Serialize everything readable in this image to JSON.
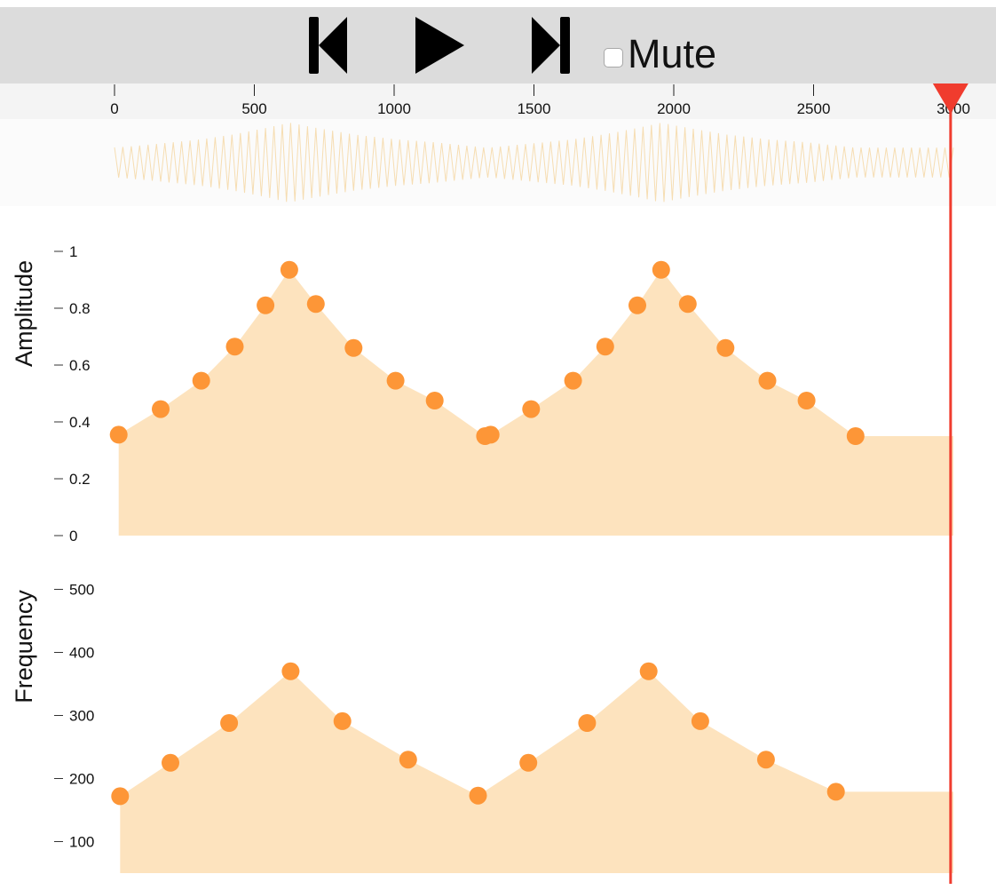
{
  "toolbar": {
    "prev_icon": "skip-back-icon",
    "play_icon": "play-icon",
    "next_icon": "skip-forward-icon",
    "mute_label": "Mute",
    "mute_checked": false
  },
  "timeline": {
    "ticks": [
      "0",
      "500",
      "1000",
      "1500",
      "2000",
      "2500",
      "3000"
    ],
    "tick_values": [
      0,
      500,
      1000,
      1500,
      2000,
      2500,
      3000
    ],
    "range": [
      0,
      3000
    ],
    "playhead": 2990,
    "playhead_color": "#f03c2e"
  },
  "colors": {
    "fill": "#fde3be",
    "point": "#fd9637",
    "waveform": "#f6ddb2",
    "axis_text": "#111111"
  },
  "chart_data": [
    {
      "type": "area",
      "ylabel": "Amplitude",
      "ylim": [
        0,
        1
      ],
      "yticks": [
        "0",
        "0.2",
        "0.4",
        "0.6",
        "0.8",
        "1"
      ],
      "ytick_values": [
        0,
        0.2,
        0.4,
        0.6,
        0.8,
        1
      ],
      "end_x": 3000,
      "points": [
        {
          "x": 15,
          "y": 0.355
        },
        {
          "x": 165,
          "y": 0.445
        },
        {
          "x": 310,
          "y": 0.545
        },
        {
          "x": 430,
          "y": 0.665
        },
        {
          "x": 540,
          "y": 0.81
        },
        {
          "x": 625,
          "y": 0.935
        },
        {
          "x": 720,
          "y": 0.815
        },
        {
          "x": 855,
          "y": 0.66
        },
        {
          "x": 1005,
          "y": 0.545
        },
        {
          "x": 1145,
          "y": 0.475
        },
        {
          "x": 1325,
          "y": 0.35
        },
        {
          "x": 1345,
          "y": 0.355
        },
        {
          "x": 1490,
          "y": 0.445
        },
        {
          "x": 1640,
          "y": 0.545
        },
        {
          "x": 1755,
          "y": 0.665
        },
        {
          "x": 1870,
          "y": 0.81
        },
        {
          "x": 1955,
          "y": 0.935
        },
        {
          "x": 2050,
          "y": 0.815
        },
        {
          "x": 2185,
          "y": 0.66
        },
        {
          "x": 2335,
          "y": 0.545
        },
        {
          "x": 2475,
          "y": 0.475
        },
        {
          "x": 2650,
          "y": 0.35
        }
      ]
    },
    {
      "type": "area",
      "ylabel": "Frequency",
      "ylim": [
        50,
        550
      ],
      "yticks": [
        "100",
        "200",
        "300",
        "400",
        "500"
      ],
      "ytick_values": [
        100,
        200,
        300,
        400,
        500
      ],
      "end_x": 3000,
      "points": [
        {
          "x": 20,
          "y": 172
        },
        {
          "x": 200,
          "y": 225
        },
        {
          "x": 410,
          "y": 288
        },
        {
          "x": 630,
          "y": 370
        },
        {
          "x": 815,
          "y": 291
        },
        {
          "x": 1050,
          "y": 230
        },
        {
          "x": 1300,
          "y": 173
        },
        {
          "x": 1480,
          "y": 225
        },
        {
          "x": 1690,
          "y": 288
        },
        {
          "x": 1910,
          "y": 370
        },
        {
          "x": 2095,
          "y": 291
        },
        {
          "x": 2330,
          "y": 230
        },
        {
          "x": 2580,
          "y": 179
        }
      ]
    }
  ]
}
